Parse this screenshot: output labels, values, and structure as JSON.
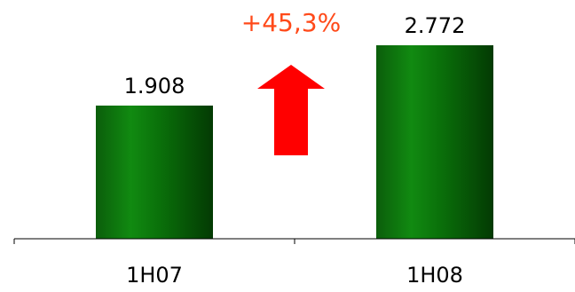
{
  "chart_data": {
    "type": "bar",
    "categories": [
      "1H07",
      "1H08"
    ],
    "values": [
      1908,
      2772
    ],
    "value_labels": [
      "1.908",
      "2.772"
    ],
    "ylim": [
      0,
      3000
    ],
    "grid": false,
    "bar_color": "#0a7a0a",
    "annotation": {
      "text": "+45,3%",
      "color": "#ff4a1a",
      "arrow_color": "#ff0000",
      "arrow_direction": "up"
    }
  }
}
